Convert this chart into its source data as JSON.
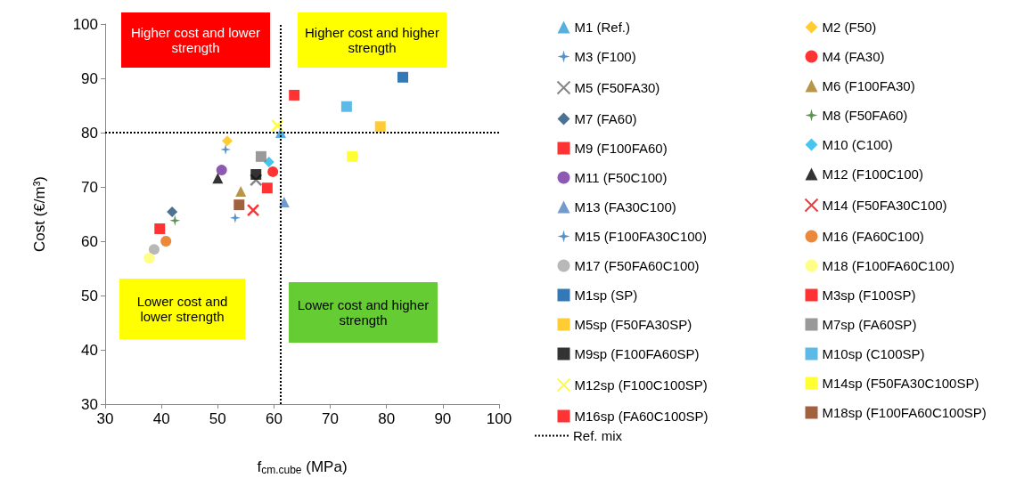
{
  "chart_data": {
    "type": "scatter",
    "xlabel": "f$_{cm.cube}$ (MPa)",
    "ylabel": "Cost (€/m³)",
    "xlim": [
      30,
      100
    ],
    "xticks": [
      30,
      40,
      50,
      60,
      70,
      80,
      90,
      100
    ],
    "ylim": [
      30,
      100
    ],
    "yticks": [
      30,
      40,
      50,
      60,
      70,
      80,
      90,
      100
    ],
    "grid": false,
    "legend": "right",
    "ref_lines": [
      {
        "axis": "x",
        "value": 61.2,
        "label": "Ref. mix",
        "color": "#000000",
        "line_style": "dotted"
      },
      {
        "axis": "y",
        "value": 80,
        "color": "#000000",
        "line_style": "dotted"
      }
    ],
    "annotations": [
      "Higher cost and lower strength",
      "Higher cost and higher strength",
      "Lower cost and lower strength",
      "Lower cost and higher strength"
    ],
    "series": [
      {
        "name": "M1 (Ref.)",
        "color": "#2e9bd6",
        "marker": "triangle",
        "x": [
          61.2
        ],
        "values": [
          80.0
        ]
      },
      {
        "name": "M2 (F50)",
        "color": "#ffc000",
        "marker": "diamond",
        "x": [
          51.7
        ],
        "values": [
          78.5
        ]
      },
      {
        "name": "M3 (F100)",
        "color": "#2e75b6",
        "marker": "star",
        "x": [
          51.4
        ],
        "values": [
          76.9
        ]
      },
      {
        "name": "M4 (FA30)",
        "color": "#ff0000",
        "marker": "circle",
        "x": [
          59.8
        ],
        "values": [
          72.8
        ]
      },
      {
        "name": "M5 (F50FA30)",
        "color": "#666666",
        "marker": "cross",
        "x": [
          56.8
        ],
        "values": [
          71.3
        ]
      },
      {
        "name": "M6 (F100FA30)",
        "color": "#a57a1c",
        "marker": "triangle",
        "x": [
          54.1
        ],
        "values": [
          69.2
        ]
      },
      {
        "name": "M7 (FA60)",
        "color": "#1f4e79",
        "marker": "diamond",
        "x": [
          41.9
        ],
        "values": [
          65.4
        ]
      },
      {
        "name": "M8 (F50FA60)",
        "color": "#38762c",
        "marker": "star",
        "x": [
          42.4
        ],
        "values": [
          63.8
        ]
      },
      {
        "name": "M9 (F100FA60)",
        "color": "#ff0000",
        "marker": "square",
        "x": [
          39.7
        ],
        "values": [
          62.3
        ]
      },
      {
        "name": "M10 (C100)",
        "color": "#19b6ea",
        "marker": "diamond",
        "x": [
          59.1
        ],
        "values": [
          74.6
        ]
      },
      {
        "name": "M11 (F50C100)",
        "color": "#7030a0",
        "marker": "circle",
        "x": [
          50.7
        ],
        "values": [
          73.1
        ]
      },
      {
        "name": "M12 (F100C100)",
        "color": "#000000",
        "marker": "triangle",
        "x": [
          50.0
        ],
        "values": [
          71.6
        ]
      },
      {
        "name": "M13 (FA30C100)",
        "color": "#4f81bd",
        "marker": "triangle",
        "x": [
          61.8
        ],
        "values": [
          67.2
        ]
      },
      {
        "name": "M14 (F50FA30C100)",
        "color": "#ff0000",
        "marker": "cross",
        "x": [
          56.3
        ],
        "values": [
          65.7
        ]
      },
      {
        "name": "M15 (F100FA30C100)",
        "color": "#2e75b6",
        "marker": "star",
        "x": [
          53.1
        ],
        "values": [
          64.3
        ]
      },
      {
        "name": "M16 (FA60C100)",
        "color": "#e46c0a",
        "marker": "circle",
        "x": [
          40.8
        ],
        "values": [
          60.0
        ]
      },
      {
        "name": "M17 (F50FA60C100)",
        "color": "#a6a6a6",
        "marker": "circle",
        "x": [
          38.7
        ],
        "values": [
          58.5
        ]
      },
      {
        "name": "M18 (F100FA60C100)",
        "color": "#ffff66",
        "marker": "circle",
        "x": [
          37.8
        ],
        "values": [
          56.9
        ]
      },
      {
        "name": "M1sp (SP)",
        "color": "#0058a6",
        "marker": "square",
        "x": [
          82.9
        ],
        "values": [
          90.2
        ]
      },
      {
        "name": "M3sp (F100SP)",
        "color": "#ff0000",
        "marker": "square",
        "x": [
          63.6
        ],
        "values": [
          86.9
        ]
      },
      {
        "name": "M5sp (F50FA30SP)",
        "color": "#ffc000",
        "marker": "square",
        "x": [
          78.9
        ],
        "values": [
          81.1
        ]
      },
      {
        "name": "M7sp (FA60SP)",
        "color": "#808080",
        "marker": "square",
        "x": [
          57.7
        ],
        "values": [
          75.6
        ]
      },
      {
        "name": "M9sp (F100FA60SP)",
        "color": "#000000",
        "marker": "square",
        "x": [
          56.8
        ],
        "values": [
          72.3
        ]
      },
      {
        "name": "M10sp (C100SP)",
        "color": "#35a9e0",
        "marker": "square",
        "x": [
          72.9
        ],
        "values": [
          84.8
        ]
      },
      {
        "name": "M12sp (F100C100SP)",
        "color": "#ffff00",
        "marker": "cross",
        "x": [
          60.6
        ],
        "values": [
          81.3
        ]
      },
      {
        "name": "M14sp (F50FA30C100SP)",
        "color": "#ffff00",
        "marker": "square",
        "x": [
          73.9
        ],
        "values": [
          75.6
        ]
      },
      {
        "name": "M16sp (FA60C100SP)",
        "color": "#ff0000",
        "marker": "square",
        "x": [
          58.8
        ],
        "values": [
          69.8
        ]
      },
      {
        "name": "M18sp (F100FA60C100SP)",
        "color": "#8b3a0e",
        "marker": "square",
        "x": [
          53.8
        ],
        "values": [
          66.7
        ]
      }
    ]
  }
}
